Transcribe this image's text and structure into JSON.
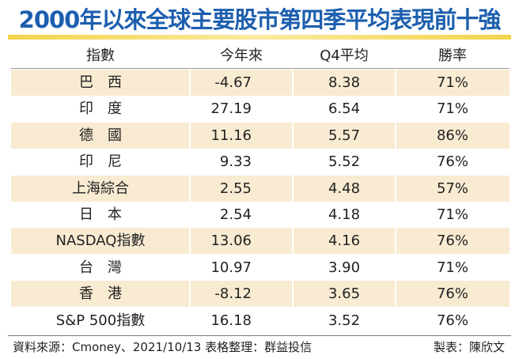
{
  "header": {
    "title": "2000年以來全球主要股市第四季平均表現前十強"
  },
  "table": {
    "columns": [
      "指數",
      "今年來",
      "Q4平均",
      "勝率"
    ],
    "rows": [
      [
        "巴　西",
        "-4.67",
        "8.38",
        "71%"
      ],
      [
        "印　度",
        "27.19",
        "6.54",
        "71%"
      ],
      [
        "德　國",
        "11.16",
        "5.57",
        "86%"
      ],
      [
        "印　尼",
        "9.33",
        "5.52",
        "76%"
      ],
      [
        "上海綜合",
        "2.55",
        "4.48",
        "57%"
      ],
      [
        "日　本",
        "2.54",
        "4.18",
        "71%"
      ],
      [
        "NASDAQ指數",
        "13.06",
        "4.16",
        "76%"
      ],
      [
        "台　灣",
        "10.97",
        "3.90",
        "71%"
      ],
      [
        "香　港",
        "-8.12",
        "3.65",
        "76%"
      ],
      [
        "S&P 500指數",
        "16.18",
        "3.52",
        "76%"
      ]
    ]
  },
  "footer": {
    "source": "資料來源：Cmoney、2021/10/13  表格整理：群益投信",
    "author": "製表：陳欣文"
  }
}
